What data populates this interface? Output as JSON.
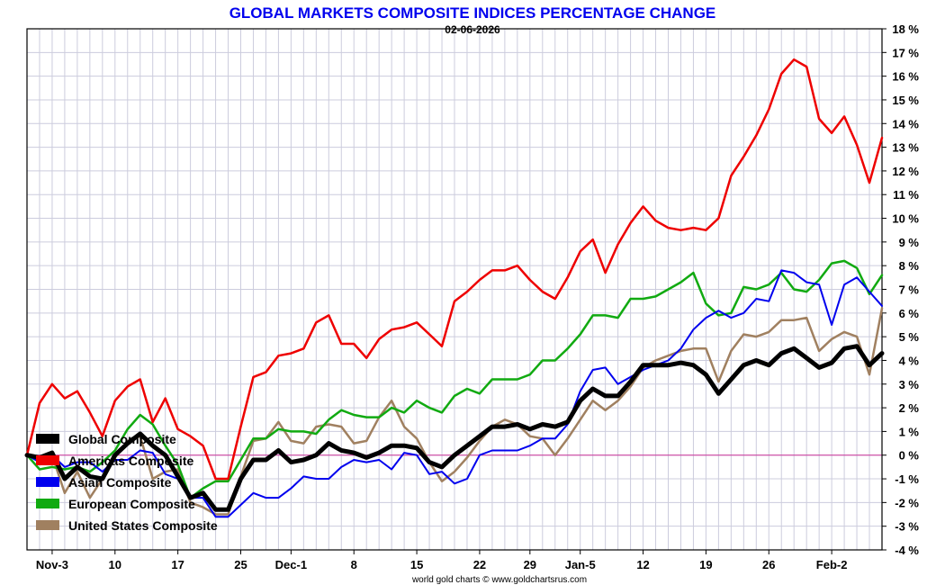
{
  "chart_data": {
    "type": "line",
    "title": "GLOBAL MARKETS COMPOSITE INDICES PERCENTAGE CHANGE",
    "subtitle": "02-06-2026",
    "credit": "world gold charts © www.goldchartsrus.com",
    "ylim": [
      -4,
      18
    ],
    "y_ticks": [
      -4,
      -3,
      -2,
      -1,
      0,
      1,
      2,
      3,
      4,
      5,
      6,
      7,
      8,
      9,
      10,
      11,
      12,
      13,
      14,
      15,
      16,
      17,
      18
    ],
    "y_tick_labels": [
      "-4 %",
      "-3 %",
      "-2 %",
      "-1 %",
      "0 %",
      "1 %",
      "2 %",
      "3 %",
      "4 %",
      "5 %",
      "6 %",
      "7 %",
      "8 %",
      "9 %",
      "10 %",
      "11 %",
      "12 %",
      "13 %",
      "14 %",
      "15 %",
      "16 %",
      "17 %",
      "18 %"
    ],
    "x_labels": [
      {
        "i": 2,
        "label": "Nov-3"
      },
      {
        "i": 7,
        "label": "10"
      },
      {
        "i": 12,
        "label": "17"
      },
      {
        "i": 17,
        "label": "25"
      },
      {
        "i": 21,
        "label": "Dec-1"
      },
      {
        "i": 26,
        "label": "8"
      },
      {
        "i": 31,
        "label": "15"
      },
      {
        "i": 36,
        "label": "22"
      },
      {
        "i": 40,
        "label": "29"
      },
      {
        "i": 44,
        "label": "Jan-5"
      },
      {
        "i": 49,
        "label": "12"
      },
      {
        "i": 54,
        "label": "19"
      },
      {
        "i": 59,
        "label": "26"
      },
      {
        "i": 64,
        "label": "Feb-2"
      }
    ],
    "zero_line_color": "#cc3399",
    "grid": true,
    "legend_position": "bottom-left",
    "series": [
      {
        "name": "Global Composite",
        "color": "#000000",
        "width": 5,
        "values": [
          0.0,
          -0.1,
          0.1,
          -1.0,
          -0.5,
          -0.9,
          -1.0,
          0.0,
          0.5,
          0.9,
          0.4,
          0.0,
          -0.9,
          -1.8,
          -1.6,
          -2.3,
          -2.3,
          -1.0,
          -0.2,
          -0.2,
          0.2,
          -0.3,
          -0.2,
          0.0,
          0.5,
          0.2,
          0.1,
          -0.1,
          0.1,
          0.4,
          0.4,
          0.3,
          -0.3,
          -0.5,
          0.0,
          0.4,
          0.8,
          1.2,
          1.2,
          1.3,
          1.1,
          1.3,
          1.2,
          1.4,
          2.3,
          2.8,
          2.5,
          2.5,
          3.1,
          3.8,
          3.8,
          3.8,
          3.9,
          3.8,
          3.4,
          2.6,
          3.2,
          3.8,
          4.0,
          3.8,
          4.3,
          4.5,
          4.1,
          3.7,
          3.9,
          4.5,
          4.6,
          3.8,
          4.3
        ]
      },
      {
        "name": "Americas Composite",
        "color": "#ee0000",
        "width": 2.5,
        "values": [
          0.0,
          2.2,
          3.0,
          2.4,
          2.7,
          1.8,
          0.8,
          2.3,
          2.9,
          3.2,
          1.4,
          2.4,
          1.1,
          0.8,
          0.4,
          -1.0,
          -1.0,
          1.2,
          3.3,
          3.5,
          4.2,
          4.3,
          4.5,
          5.6,
          5.9,
          4.7,
          4.7,
          4.1,
          4.9,
          5.3,
          5.4,
          5.6,
          5.1,
          4.6,
          6.5,
          6.9,
          7.4,
          7.8,
          7.8,
          8.0,
          7.4,
          6.9,
          6.6,
          7.5,
          8.6,
          9.1,
          7.7,
          8.9,
          9.8,
          10.5,
          9.9,
          9.6,
          9.5,
          9.6,
          9.5,
          10.0,
          11.8,
          12.6,
          13.5,
          14.6,
          16.1,
          16.7,
          16.4,
          14.2,
          13.6,
          14.3,
          13.1,
          11.5,
          13.4
        ]
      },
      {
        "name": "Asian Composite",
        "color": "#0000ee",
        "width": 2,
        "values": [
          0.0,
          -0.3,
          0.0,
          -0.5,
          -0.3,
          -0.3,
          -0.7,
          -0.2,
          -0.2,
          0.2,
          0.1,
          -0.8,
          -1.0,
          -1.8,
          -1.8,
          -2.6,
          -2.6,
          -2.1,
          -1.6,
          -1.8,
          -1.8,
          -1.4,
          -0.9,
          -1.0,
          -1.0,
          -0.5,
          -0.2,
          -0.3,
          -0.2,
          -0.6,
          0.1,
          0.0,
          -0.8,
          -0.7,
          -1.2,
          -1.0,
          0.0,
          0.2,
          0.2,
          0.2,
          0.4,
          0.7,
          0.7,
          1.3,
          2.7,
          3.6,
          3.7,
          3.0,
          3.3,
          3.6,
          3.8,
          4.0,
          4.5,
          5.3,
          5.8,
          6.1,
          5.8,
          6.0,
          6.6,
          6.5,
          7.8,
          7.7,
          7.3,
          7.2,
          5.5,
          7.2,
          7.5,
          6.9,
          6.3
        ]
      },
      {
        "name": "European Composite",
        "color": "#11aa11",
        "width": 2.5,
        "values": [
          0.0,
          -0.6,
          -0.5,
          -0.6,
          -0.5,
          -0.7,
          -0.3,
          0.2,
          1.1,
          1.7,
          1.3,
          0.4,
          -0.4,
          -1.8,
          -1.4,
          -1.1,
          -1.1,
          -0.2,
          0.7,
          0.7,
          1.1,
          1.0,
          1.0,
          0.9,
          1.5,
          1.9,
          1.7,
          1.6,
          1.6,
          2.0,
          1.8,
          2.3,
          2.0,
          1.8,
          2.5,
          2.8,
          2.6,
          3.2,
          3.2,
          3.2,
          3.4,
          4.0,
          4.0,
          4.5,
          5.1,
          5.9,
          5.9,
          5.8,
          6.6,
          6.6,
          6.7,
          7.0,
          7.3,
          7.7,
          6.4,
          5.9,
          6.0,
          7.1,
          7.0,
          7.2,
          7.7,
          7.0,
          6.9,
          7.4,
          8.1,
          8.2,
          7.9,
          6.8,
          7.6
        ]
      },
      {
        "name": "United States Composite",
        "color": "#a08060",
        "width": 2.5,
        "values": [
          0.0,
          -0.2,
          0.0,
          -1.6,
          -0.7,
          -1.8,
          -1.0,
          -0.1,
          0.6,
          0.8,
          -1.0,
          -0.7,
          -0.6,
          -2.0,
          -2.2,
          -2.5,
          -2.5,
          -0.9,
          0.6,
          0.7,
          1.4,
          0.6,
          0.5,
          1.2,
          1.3,
          1.2,
          0.5,
          0.6,
          1.6,
          2.3,
          1.2,
          0.7,
          -0.3,
          -1.1,
          -0.7,
          -0.1,
          0.6,
          1.2,
          1.5,
          1.3,
          0.8,
          0.7,
          0.0,
          0.7,
          1.5,
          2.3,
          1.9,
          2.3,
          2.9,
          3.7,
          4.0,
          4.2,
          4.4,
          4.5,
          4.5,
          3.1,
          4.4,
          5.1,
          5.0,
          5.2,
          5.7,
          5.7,
          5.8,
          4.4,
          4.9,
          5.2,
          5.0,
          3.4,
          6.2
        ]
      }
    ]
  }
}
